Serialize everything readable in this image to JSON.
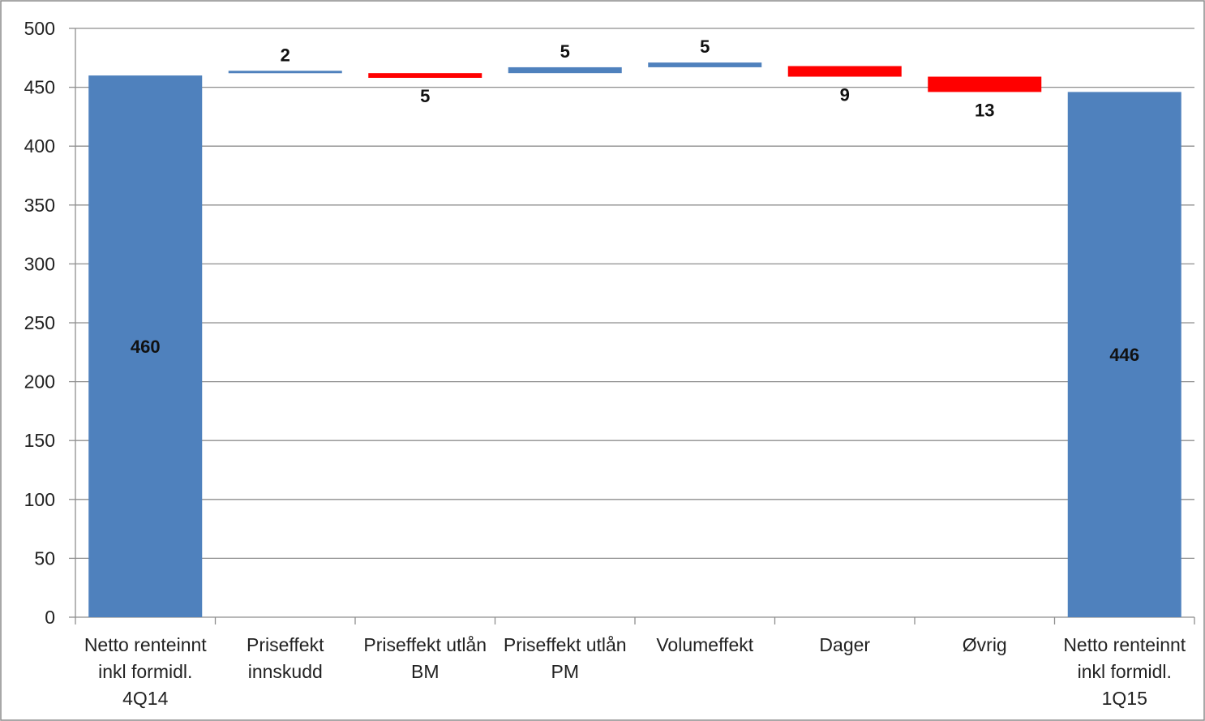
{
  "chart_data": {
    "type": "bar",
    "subtype": "waterfall",
    "title": "",
    "xlabel": "",
    "ylabel": "",
    "ylim": [
      0,
      500
    ],
    "yticks": [
      0,
      50,
      100,
      150,
      200,
      250,
      300,
      350,
      400,
      450,
      500
    ],
    "grid": true,
    "legend": "none",
    "colors": {
      "total": "#4F81BD",
      "increase": "#4F81BD",
      "decrease": "#FF0000"
    },
    "categories": [
      [
        "Netto renteinnt",
        "inkl formidl.",
        "4Q14"
      ],
      [
        "Priseffekt",
        "innskudd"
      ],
      [
        "Priseffekt utlån",
        "BM"
      ],
      [
        "Priseffekt utlån",
        "PM"
      ],
      [
        "Volumeffekt"
      ],
      [
        "Dager"
      ],
      [
        "Øvrig"
      ],
      [
        "Netto renteinnt",
        "inkl formidl.",
        "1Q15"
      ]
    ],
    "bars": [
      {
        "kind": "total",
        "start": 0,
        "end": 460,
        "label": "460"
      },
      {
        "kind": "increase",
        "start": 462,
        "end": 464,
        "label": "2"
      },
      {
        "kind": "decrease",
        "start": 462,
        "end": 458,
        "label": "5"
      },
      {
        "kind": "increase",
        "start": 462,
        "end": 467,
        "label": "5"
      },
      {
        "kind": "increase",
        "start": 467,
        "end": 471,
        "label": "5"
      },
      {
        "kind": "decrease",
        "start": 468,
        "end": 459,
        "label": "9"
      },
      {
        "kind": "decrease",
        "start": 459,
        "end": 446,
        "label": "13"
      },
      {
        "kind": "total",
        "start": 0,
        "end": 446,
        "label": "446"
      }
    ]
  }
}
